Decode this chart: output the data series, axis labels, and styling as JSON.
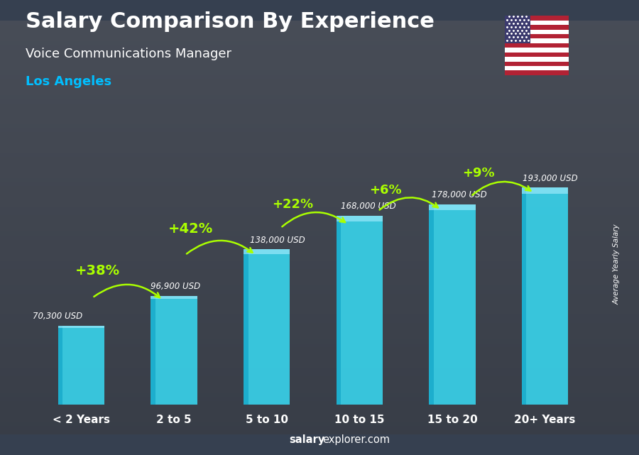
{
  "title": "Salary Comparison By Experience",
  "subtitle": "Voice Communications Manager",
  "city": "Los Angeles",
  "categories": [
    "< 2 Years",
    "2 to 5",
    "5 to 10",
    "10 to 15",
    "15 to 20",
    "20+ Years"
  ],
  "values": [
    70300,
    96900,
    138000,
    168000,
    178000,
    193000
  ],
  "value_labels": [
    "70,300 USD",
    "96,900 USD",
    "138,000 USD",
    "168,000 USD",
    "178,000 USD",
    "193,000 USD"
  ],
  "pct_changes": [
    "+38%",
    "+42%",
    "+22%",
    "+6%",
    "+9%"
  ],
  "bar_face_color": "#38D8F0",
  "bar_side_color": "#1AACCC",
  "bar_highlight_color": "#AAEEFF",
  "pct_color": "#AAFF00",
  "value_label_color": "#FFFFFF",
  "title_color": "#FFFFFF",
  "subtitle_color": "#FFFFFF",
  "city_color": "#00BFFF",
  "bg_top_color": "#4a5568",
  "bg_bottom_color": "#2d3748",
  "ylabel": "Average Yearly Salary",
  "footer_salary": "salary",
  "footer_rest": "explorer.com",
  "ylim": [
    0,
    230000
  ],
  "bar_width": 0.5,
  "bar_3d_depth": 0.07
}
